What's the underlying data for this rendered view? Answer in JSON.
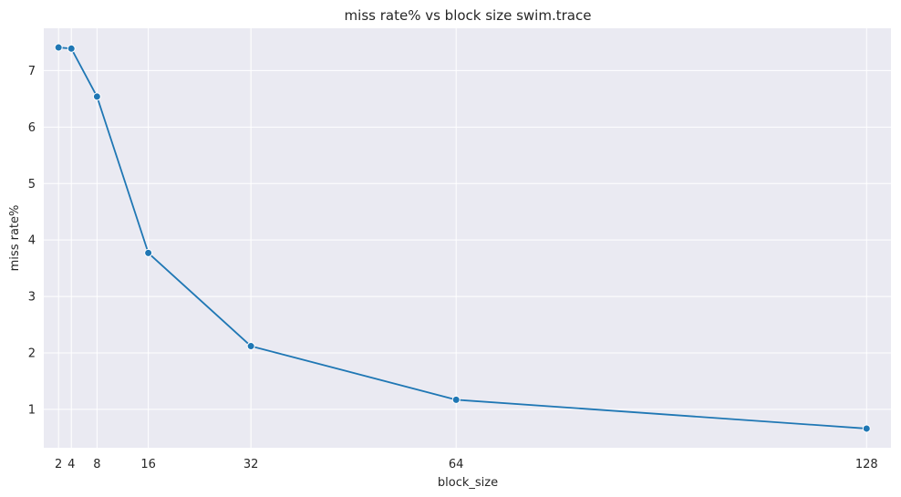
{
  "chart_data": {
    "type": "line",
    "title": "miss rate% vs block size swim.trace",
    "xlabel": "block_size",
    "ylabel": "miss rate%",
    "x": [
      2,
      4,
      8,
      16,
      32,
      64,
      128
    ],
    "series": [
      {
        "values": [
          7.41,
          7.39,
          6.54,
          3.77,
          2.12,
          1.17,
          0.66
        ],
        "color": "#1f77b4",
        "marker": "circle"
      }
    ],
    "xticks": [
      2,
      4,
      8,
      16,
      32,
      64,
      128
    ],
    "yticks": [
      1,
      2,
      3,
      4,
      5,
      6,
      7
    ],
    "xlim": [
      -0.3,
      131.8
    ],
    "ylim": [
      0.32,
      7.75
    ],
    "grid": true,
    "background": "#eaeaf2",
    "grid_color": "#ffffff"
  }
}
